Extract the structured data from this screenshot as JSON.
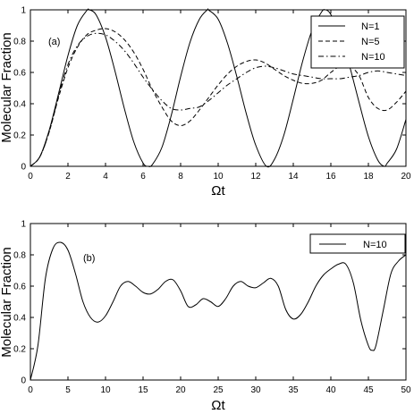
{
  "chart_data": [
    {
      "type": "line",
      "panel_label": "(a)",
      "xlabel": "Ωt",
      "ylabel": "Molecular Fraction",
      "xlim": [
        0,
        20
      ],
      "ylim": [
        0,
        1
      ],
      "xticks": [
        0,
        2,
        4,
        6,
        8,
        10,
        12,
        14,
        16,
        18,
        20
      ],
      "yticks": [
        0,
        0.2,
        0.4,
        0.6,
        0.8,
        1
      ],
      "ytick_labels": [
        "0",
        "0.2",
        "0.4",
        "0.6",
        "0.8",
        "1"
      ],
      "legend_position": "top-right",
      "series": [
        {
          "name": "N=1",
          "style": "solid",
          "x": [
            0,
            0.5,
            1,
            1.5,
            2,
            2.5,
            3,
            3.14,
            3.5,
            4,
            4.5,
            5,
            5.5,
            6,
            6.28,
            6.5,
            7,
            7.5,
            8,
            8.5,
            9,
            9.42,
            9.5,
            10,
            10.5,
            11,
            11.5,
            12,
            12.57,
            13,
            13.5,
            14,
            14.5,
            15,
            15.5,
            15.71,
            16,
            16.5,
            17,
            17.5,
            18,
            18.5,
            18.85,
            19,
            19.5,
            20
          ],
          "y": [
            0,
            0.061,
            0.23,
            0.465,
            0.708,
            0.9,
            0.995,
            1.0,
            0.968,
            0.826,
            0.611,
            0.371,
            0.158,
            0.021,
            0.0,
            0.012,
            0.12,
            0.325,
            0.573,
            0.793,
            0.94,
            1.0,
            0.998,
            0.94,
            0.785,
            0.57,
            0.336,
            0.135,
            0.0,
            0.045,
            0.2,
            0.43,
            0.672,
            0.87,
            0.985,
            1.0,
            0.97,
            0.84,
            0.64,
            0.41,
            0.19,
            0.04,
            0.0,
            0.02,
            0.11,
            0.3
          ]
        },
        {
          "name": "N=5",
          "style": "dashed",
          "x": [
            0,
            0.5,
            1,
            1.5,
            2,
            2.5,
            3,
            3.5,
            4,
            4.5,
            5,
            5.5,
            6,
            6.5,
            7,
            7.5,
            8,
            8.5,
            9,
            9.5,
            10,
            10.5,
            11,
            11.5,
            12,
            12.5,
            13,
            13.5,
            14,
            14.5,
            15,
            15.5,
            16,
            16.5,
            17,
            17.5,
            18,
            18.5,
            19,
            19.5,
            20
          ],
          "y": [
            0,
            0.06,
            0.22,
            0.44,
            0.63,
            0.76,
            0.84,
            0.87,
            0.88,
            0.86,
            0.81,
            0.73,
            0.62,
            0.49,
            0.38,
            0.29,
            0.26,
            0.29,
            0.36,
            0.44,
            0.52,
            0.59,
            0.64,
            0.67,
            0.68,
            0.66,
            0.62,
            0.58,
            0.55,
            0.53,
            0.53,
            0.55,
            0.6,
            0.64,
            0.64,
            0.58,
            0.44,
            0.37,
            0.36,
            0.41,
            0.48
          ]
        },
        {
          "name": "N=10",
          "style": "dashdot",
          "x": [
            0,
            0.5,
            1,
            1.5,
            2,
            2.5,
            3,
            3.5,
            4,
            4.5,
            5,
            5.5,
            6,
            6.5,
            7,
            7.5,
            8,
            8.5,
            9,
            9.5,
            10,
            10.5,
            11,
            11.5,
            12,
            12.5,
            13,
            13.5,
            14,
            14.5,
            15,
            15.5,
            16,
            16.5,
            17,
            17.5,
            18,
            18.5,
            19,
            19.5,
            20
          ],
          "y": [
            0,
            0.06,
            0.22,
            0.45,
            0.65,
            0.77,
            0.83,
            0.85,
            0.84,
            0.8,
            0.74,
            0.66,
            0.57,
            0.49,
            0.42,
            0.37,
            0.36,
            0.37,
            0.38,
            0.42,
            0.47,
            0.52,
            0.56,
            0.6,
            0.63,
            0.64,
            0.63,
            0.61,
            0.59,
            0.58,
            0.57,
            0.56,
            0.56,
            0.56,
            0.57,
            0.58,
            0.6,
            0.61,
            0.6,
            0.59,
            0.58
          ]
        }
      ]
    },
    {
      "type": "line",
      "panel_label": "(b)",
      "xlabel": "Ωt",
      "ylabel": "Molecular Fraction",
      "xlim": [
        0,
        50
      ],
      "ylim": [
        0,
        1
      ],
      "xticks": [
        0,
        5,
        10,
        15,
        20,
        25,
        30,
        35,
        40,
        45,
        50
      ],
      "yticks": [
        0,
        0.2,
        0.4,
        0.6,
        0.8,
        1
      ],
      "ytick_labels": [
        "0",
        "0.2",
        "0.4",
        "0.6",
        "0.8",
        "1"
      ],
      "legend_position": "top-right",
      "series": [
        {
          "name": "N=10",
          "style": "solid",
          "x": [
            0,
            1,
            2,
            3,
            4,
            5,
            6,
            7,
            8,
            9,
            10,
            11,
            12,
            13,
            14,
            15,
            16,
            17,
            18,
            19,
            20,
            21,
            22,
            23,
            24,
            25,
            26,
            27,
            28,
            29,
            30,
            31,
            32,
            33,
            34,
            35,
            36,
            37,
            38,
            39,
            40,
            41,
            42,
            43,
            44,
            45,
            45.5,
            46,
            47,
            48,
            49,
            50
          ],
          "y": [
            0,
            0.22,
            0.65,
            0.84,
            0.88,
            0.83,
            0.68,
            0.5,
            0.4,
            0.37,
            0.41,
            0.5,
            0.6,
            0.63,
            0.6,
            0.56,
            0.55,
            0.58,
            0.63,
            0.64,
            0.57,
            0.47,
            0.48,
            0.52,
            0.5,
            0.47,
            0.52,
            0.6,
            0.63,
            0.6,
            0.59,
            0.62,
            0.65,
            0.6,
            0.45,
            0.39,
            0.42,
            0.5,
            0.6,
            0.67,
            0.71,
            0.74,
            0.74,
            0.62,
            0.38,
            0.22,
            0.19,
            0.22,
            0.45,
            0.68,
            0.76,
            0.8
          ]
        }
      ]
    }
  ]
}
